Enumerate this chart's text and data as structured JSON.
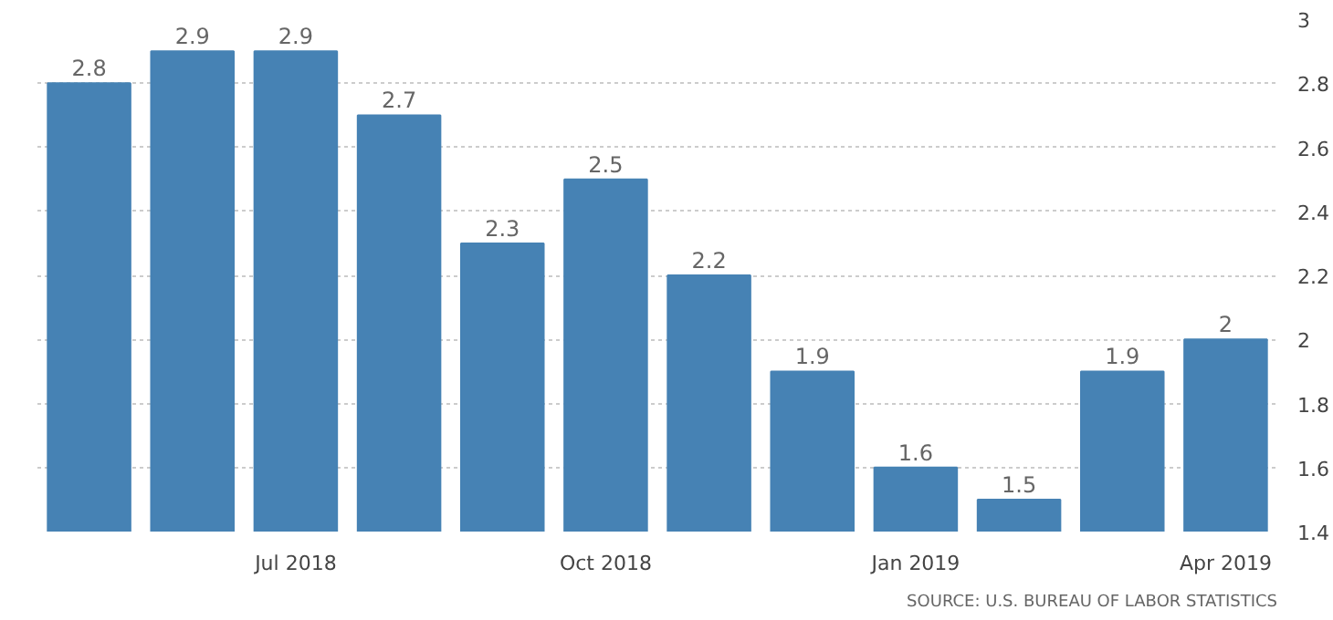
{
  "chart_data": {
    "type": "bar",
    "categories": [
      null,
      null,
      "Jul 2018",
      null,
      null,
      "Oct 2018",
      null,
      null,
      "Jan 2019",
      null,
      null,
      "Apr 2019"
    ],
    "values": [
      2.8,
      2.9,
      2.9,
      2.7,
      2.3,
      2.5,
      2.2,
      1.9,
      1.6,
      1.5,
      1.9,
      2
    ],
    "color": "#4682b4",
    "ylim": [
      1.4,
      3
    ],
    "yticks": [
      1.4,
      1.6,
      1.8,
      2,
      2.2,
      2.4,
      2.6,
      2.8,
      3
    ],
    "grid": "y",
    "data_labels": true,
    "annotations": [
      "SOURCE: U.S. BUREAU OF LABOR STATISTICS"
    ]
  }
}
